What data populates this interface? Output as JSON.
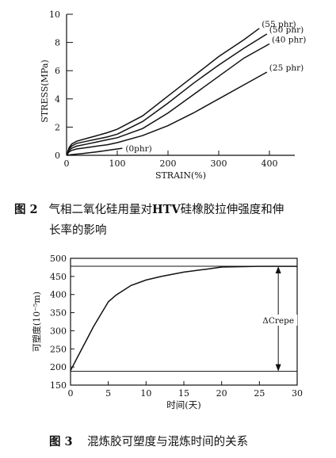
{
  "figure1": {
    "chart_data": {
      "type": "line",
      "xlabel": "STRAIN(%)",
      "ylabel": "STRESS(MPa)",
      "xlim": [
        0,
        450
      ],
      "ylim": [
        0,
        10
      ],
      "x_ticks": [
        0,
        100,
        200,
        300,
        400
      ],
      "y_ticks": [
        0,
        2,
        4,
        6,
        8,
        10
      ],
      "series": [
        {
          "name": "(55 phr)",
          "x": [
            0,
            5,
            10,
            20,
            40,
            60,
            80,
            100,
            150,
            200,
            250,
            300,
            350,
            380
          ],
          "y": [
            0,
            0.55,
            0.8,
            1.0,
            1.2,
            1.4,
            1.6,
            1.85,
            2.8,
            4.2,
            5.6,
            7.0,
            8.2,
            9.0
          ]
        },
        {
          "name": "(50 phr)",
          "x": [
            0,
            5,
            10,
            20,
            40,
            60,
            80,
            100,
            150,
            200,
            250,
            300,
            350,
            395
          ],
          "y": [
            0,
            0.45,
            0.65,
            0.85,
            1.0,
            1.15,
            1.3,
            1.5,
            2.4,
            3.7,
            5.1,
            6.4,
            7.6,
            8.6
          ]
        },
        {
          "name": "(40 phr)",
          "x": [
            0,
            5,
            10,
            20,
            40,
            60,
            80,
            100,
            150,
            200,
            250,
            300,
            350,
            400
          ],
          "y": [
            0,
            0.35,
            0.5,
            0.65,
            0.8,
            0.95,
            1.1,
            1.25,
            1.9,
            3.0,
            4.3,
            5.6,
            6.9,
            7.9
          ]
        },
        {
          "name": "(25 phr)",
          "x": [
            0,
            5,
            10,
            20,
            40,
            60,
            80,
            100,
            150,
            200,
            250,
            300,
            350,
            395
          ],
          "y": [
            0,
            0.25,
            0.35,
            0.45,
            0.55,
            0.65,
            0.75,
            0.9,
            1.4,
            2.1,
            3.0,
            4.0,
            5.0,
            5.9
          ]
        },
        {
          "name": "(0phr)",
          "x": [
            0,
            10,
            30,
            60,
            90,
            110
          ],
          "y": [
            0,
            0.05,
            0.12,
            0.25,
            0.4,
            0.5
          ]
        }
      ]
    },
    "caption_num": "图 2",
    "caption_text_a": "气相二氧化硅用量对",
    "caption_strong": "HTV",
    "caption_text_b": "硅橡胶拉伸强度和伸",
    "caption_line2": "长率的影响"
  },
  "figure2": {
    "chart_data": {
      "type": "line",
      "xlabel": "时间(天)",
      "ylabel": "可塑度(10⁻⁵m)",
      "xlim": [
        0,
        30
      ],
      "ylim": [
        150,
        500
      ],
      "x_ticks": [
        0,
        5,
        10,
        15,
        20,
        25,
        30
      ],
      "y_ticks": [
        150,
        200,
        250,
        300,
        350,
        400,
        450,
        500
      ],
      "series": [
        {
          "name": "",
          "x": [
            0,
            1,
            2,
            3,
            4,
            5,
            6,
            8,
            10,
            12,
            15,
            18,
            20,
            25,
            30
          ],
          "y": [
            190,
            230,
            270,
            310,
            345,
            380,
            398,
            425,
            440,
            450,
            462,
            470,
            476,
            478,
            478
          ]
        }
      ],
      "hlines": [
        478,
        188
      ],
      "annotation": "ΔCrepe",
      "annotation_x": 27.5
    },
    "caption_num": "图 3",
    "caption_text": "混炼胶可塑度与混炼时间的关系"
  }
}
